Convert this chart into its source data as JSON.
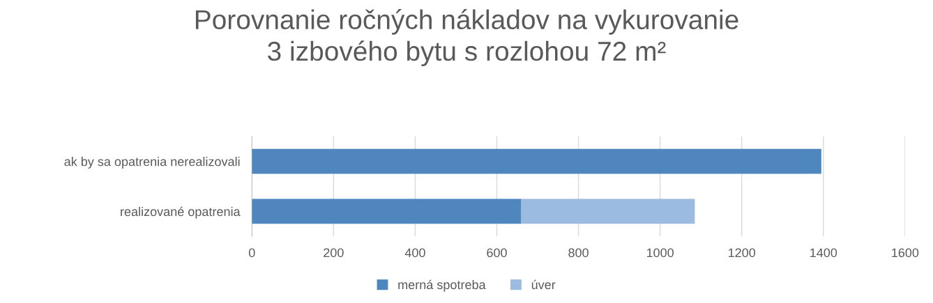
{
  "chart_data": {
    "type": "bar",
    "orientation": "horizontal",
    "stacked": true,
    "title": "Porovnanie ročných nákladov na vykurovanie\n3 izbového bytu s rozlohou 72 m²",
    "categories": [
      "ak by sa opatrenia nerealizovali",
      "realizované opatrenia"
    ],
    "series": [
      {
        "name": "merná spotreba",
        "color": "#4f86bd",
        "values": [
          1395,
          660
        ]
      },
      {
        "name": "úver",
        "color": "#9cbbe0",
        "values": [
          null,
          425
        ]
      }
    ],
    "xlim": [
      0,
      1600
    ],
    "xticks": [
      0,
      200,
      400,
      600,
      800,
      1000,
      1200,
      1400,
      1600
    ],
    "grid": "x",
    "legend": "bottom"
  }
}
